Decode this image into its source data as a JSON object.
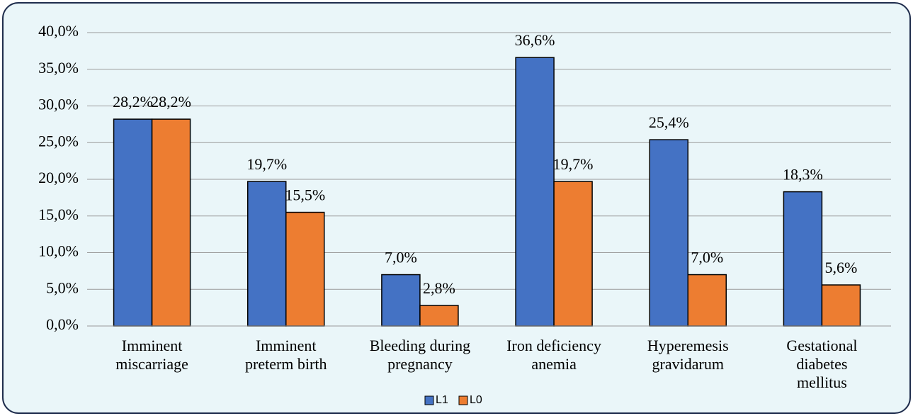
{
  "chart_data": {
    "type": "bar",
    "categories": [
      "Imminent\nmiscarriage",
      "Imminent\npreterm birth",
      "Bleeding during\npregnancy",
      "Iron deficiency\nanemia",
      "Hyperemesis\ngravidarum",
      "Gestational\ndiabetes\nmellitus"
    ],
    "series": [
      {
        "name": "L1",
        "color": "#4472c4",
        "values": [
          28.2,
          19.7,
          7.0,
          36.6,
          25.4,
          18.3
        ],
        "value_labels": [
          "28,2%",
          "19,7%",
          "7,0%",
          "36,6%",
          "25,4%",
          "18,3%"
        ]
      },
      {
        "name": "L0",
        "color": "#ed7d31",
        "values": [
          28.2,
          15.5,
          2.8,
          19.7,
          7.0,
          5.6
        ],
        "value_labels": [
          "28,2%",
          "15,5%",
          "2,8%",
          "19,7%",
          "7,0%",
          "5,6%"
        ]
      }
    ],
    "ylim": [
      0,
      40
    ],
    "yticks": [
      {
        "value": 0,
        "label": "0,0%"
      },
      {
        "value": 5,
        "label": "5,0%"
      },
      {
        "value": 10,
        "label": "10,0%"
      },
      {
        "value": 15,
        "label": "15,0%"
      },
      {
        "value": 20,
        "label": "20,0%"
      },
      {
        "value": 25,
        "label": "25,0%"
      },
      {
        "value": 30,
        "label": "30,0%"
      },
      {
        "value": 35,
        "label": "35,0%"
      },
      {
        "value": 40,
        "label": "40,0%"
      }
    ],
    "grid": true,
    "legend": "bottom"
  }
}
